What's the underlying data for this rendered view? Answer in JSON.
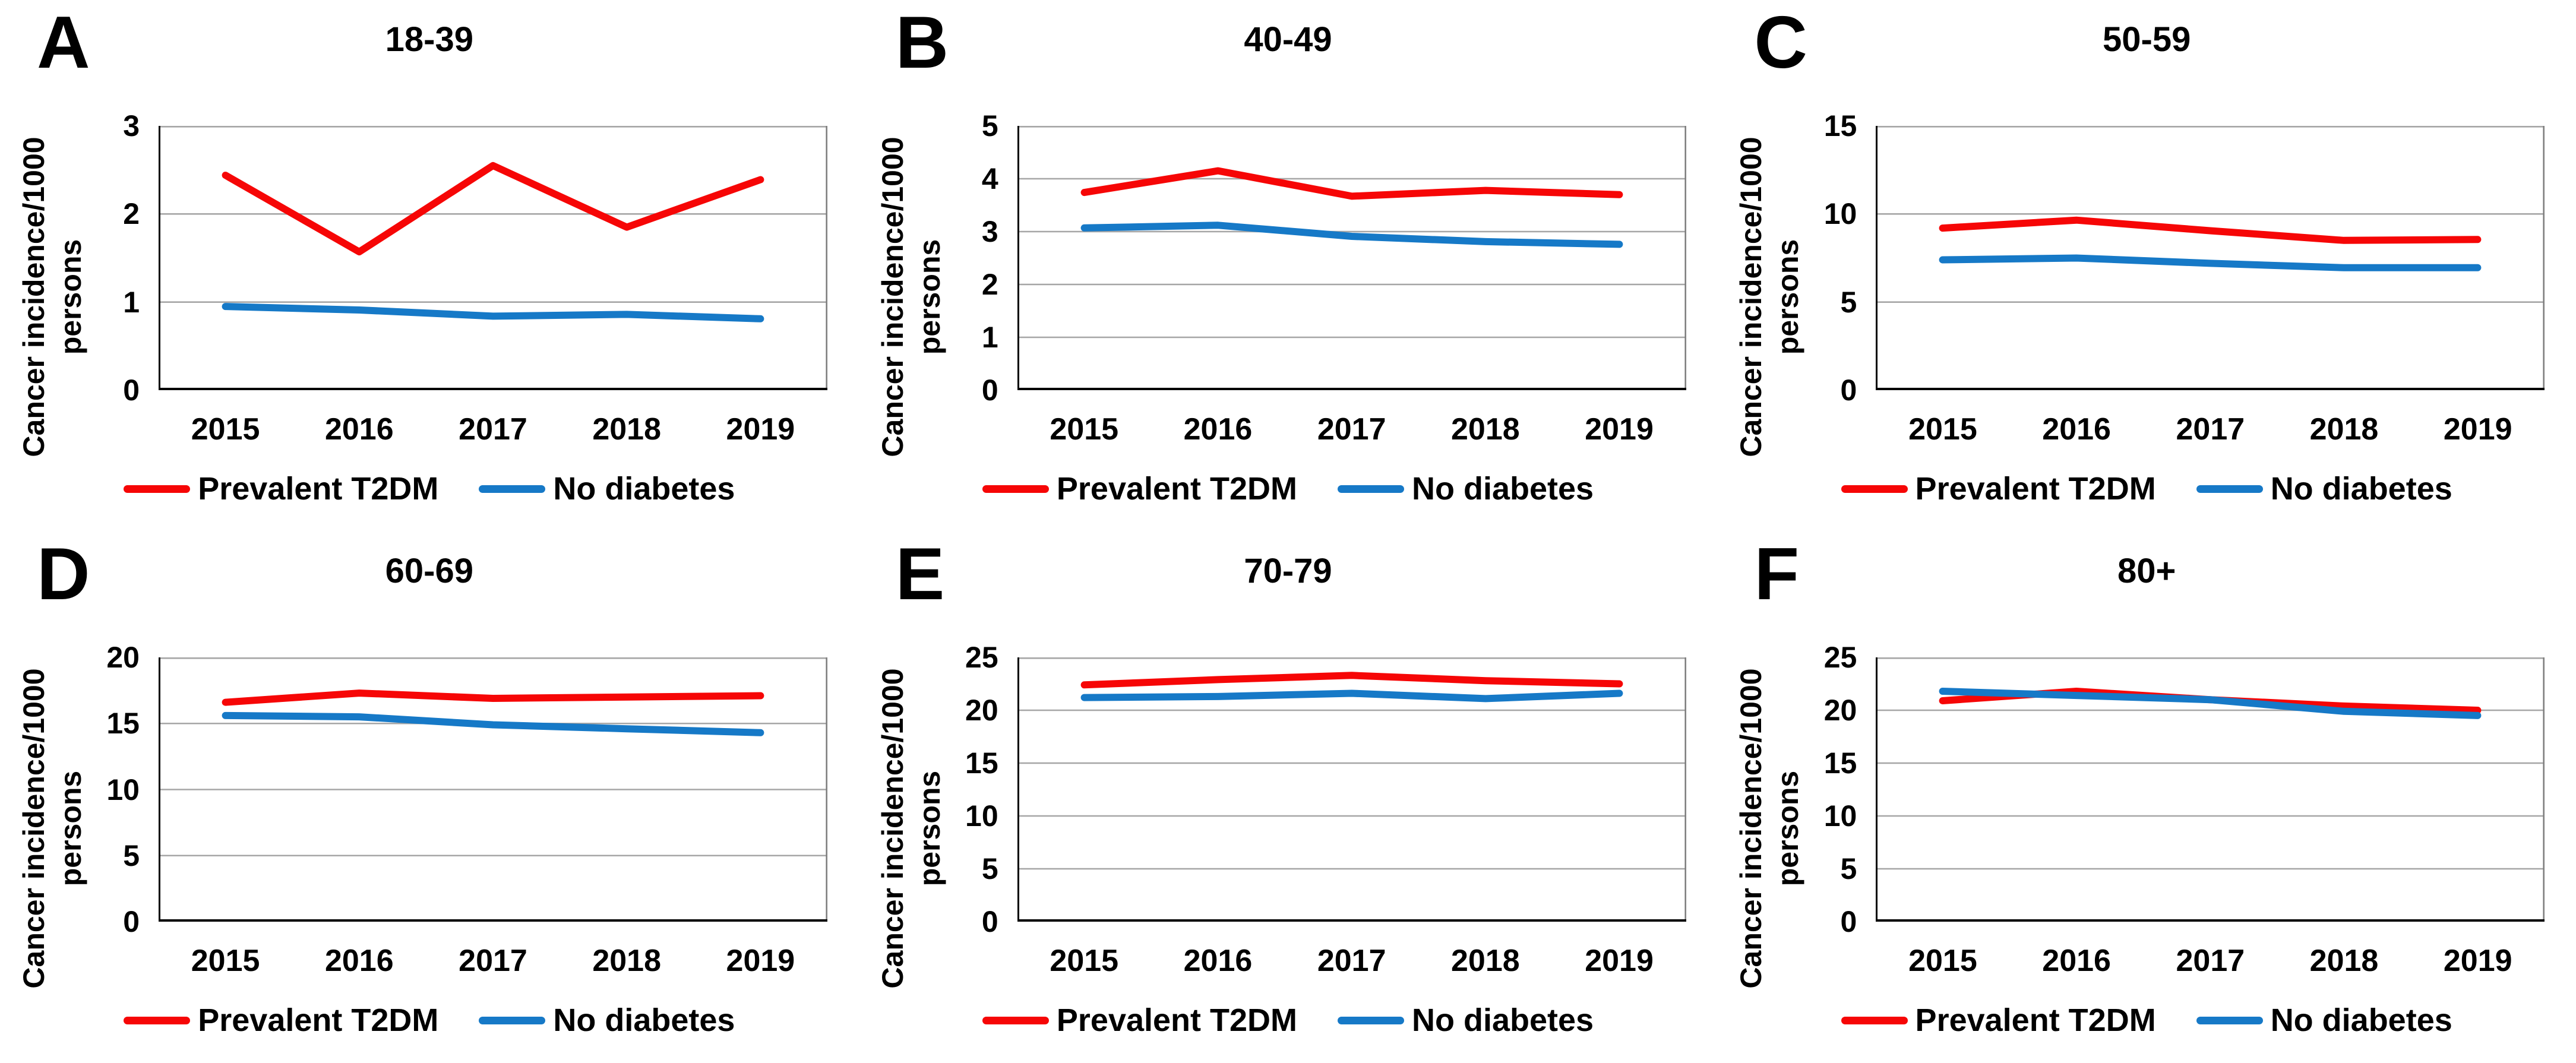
{
  "figure": {
    "y_axis_title_line1": "Cancer incidence/1000",
    "y_axis_title_line2": "persons",
    "x_axis_years": [
      "2015",
      "2016",
      "2017",
      "2018",
      "2019"
    ]
  },
  "colors": {
    "prevalent_t2dm": "#F60606",
    "no_diabetes": "#1679C7",
    "gridline": "#A6A6A6",
    "plot_border": "#808080",
    "axis_line": "#000000",
    "text": "#000000",
    "background": "#FFFFFF"
  },
  "chart_data": [
    {
      "type": "line",
      "letter": "A",
      "title": "18-39",
      "x": [
        "2015",
        "2016",
        "2017",
        "2018",
        "2019"
      ],
      "ylabel": "Cancer incidence/1000 persons",
      "ylim": [
        0,
        3
      ],
      "y_ticks": [
        0,
        1,
        2,
        3
      ],
      "grid": true,
      "legend_position": "bottom",
      "series": [
        {
          "name": "Prevalent T2DM",
          "color_key": "prevalent_t2dm",
          "values": [
            2.44,
            1.57,
            2.55,
            1.85,
            2.39
          ]
        },
        {
          "name": "No diabetes",
          "color_key": "no_diabetes",
          "values": [
            0.95,
            0.91,
            0.84,
            0.86,
            0.81
          ]
        }
      ]
    },
    {
      "type": "line",
      "letter": "B",
      "title": "40-49",
      "x": [
        "2015",
        "2016",
        "2017",
        "2018",
        "2019"
      ],
      "ylabel": "Cancer incidence/1000 persons",
      "ylim": [
        0,
        5
      ],
      "y_ticks": [
        0,
        1,
        2,
        3,
        4,
        5
      ],
      "grid": true,
      "legend_position": "bottom",
      "series": [
        {
          "name": "Prevalent T2DM",
          "color_key": "prevalent_t2dm",
          "values": [
            3.74,
            4.15,
            3.67,
            3.78,
            3.7
          ]
        },
        {
          "name": "No diabetes",
          "color_key": "no_diabetes",
          "values": [
            3.07,
            3.12,
            2.91,
            2.81,
            2.76
          ]
        }
      ]
    },
    {
      "type": "line",
      "letter": "C",
      "title": "50-59",
      "x": [
        "2015",
        "2016",
        "2017",
        "2018",
        "2019"
      ],
      "ylabel": "Cancer incidence/1000 persons",
      "ylim": [
        0,
        15
      ],
      "y_ticks": [
        0,
        5,
        10,
        15
      ],
      "grid": true,
      "legend_position": "bottom",
      "series": [
        {
          "name": "Prevalent T2DM",
          "color_key": "prevalent_t2dm",
          "values": [
            9.2,
            9.65,
            9.05,
            8.5,
            8.55
          ]
        },
        {
          "name": "No diabetes",
          "color_key": "no_diabetes",
          "values": [
            7.4,
            7.5,
            7.2,
            6.95,
            6.95
          ]
        }
      ]
    },
    {
      "type": "line",
      "letter": "D",
      "title": "60-69",
      "x": [
        "2015",
        "2016",
        "2017",
        "2018",
        "2019"
      ],
      "ylabel": "Cancer incidence/1000 persons",
      "ylim": [
        0,
        20
      ],
      "y_ticks": [
        0,
        5,
        10,
        15,
        20
      ],
      "grid": true,
      "legend_position": "bottom",
      "series": [
        {
          "name": "Prevalent T2DM",
          "color_key": "prevalent_t2dm",
          "values": [
            16.6,
            17.3,
            16.9,
            17.0,
            17.1
          ]
        },
        {
          "name": "No diabetes",
          "color_key": "no_diabetes",
          "values": [
            15.6,
            15.5,
            14.9,
            14.6,
            14.3
          ]
        }
      ]
    },
    {
      "type": "line",
      "letter": "E",
      "title": "70-79",
      "x": [
        "2015",
        "2016",
        "2017",
        "2018",
        "2019"
      ],
      "ylabel": "Cancer incidence/1000 persons",
      "ylim": [
        0,
        25
      ],
      "y_ticks": [
        0,
        5,
        10,
        15,
        20,
        25
      ],
      "grid": true,
      "legend_position": "bottom",
      "series": [
        {
          "name": "Prevalent T2DM",
          "color_key": "prevalent_t2dm",
          "values": [
            22.4,
            22.9,
            23.3,
            22.8,
            22.5
          ]
        },
        {
          "name": "No diabetes",
          "color_key": "no_diabetes",
          "values": [
            21.2,
            21.3,
            21.6,
            21.1,
            21.6
          ]
        }
      ]
    },
    {
      "type": "line",
      "letter": "F",
      "title": "80+",
      "x": [
        "2015",
        "2016",
        "2017",
        "2018",
        "2019"
      ],
      "ylabel": "Cancer incidence/1000 persons",
      "ylim": [
        0,
        25
      ],
      "y_ticks": [
        0,
        5,
        10,
        15,
        20,
        25
      ],
      "grid": true,
      "legend_position": "bottom",
      "series": [
        {
          "name": "Prevalent T2DM",
          "color_key": "prevalent_t2dm",
          "values": [
            20.9,
            21.8,
            21.0,
            20.4,
            20.0
          ]
        },
        {
          "name": "No diabetes",
          "color_key": "no_diabetes",
          "values": [
            21.8,
            21.4,
            21.0,
            19.9,
            19.5
          ]
        }
      ]
    }
  ]
}
